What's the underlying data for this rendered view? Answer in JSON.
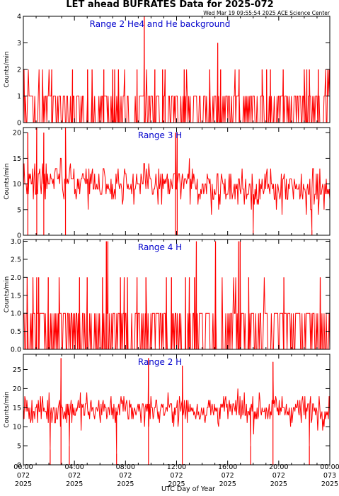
{
  "title": "LET ahead BUFRATES Data for 2025-072",
  "timestamp": "Wed Mar 19 09:55:54 2025 ACE Science Center",
  "xlabel": "UTC Day of Year",
  "ylabel": "Counts/min",
  "colors": {
    "trace": "#ff0000",
    "panel_label": "#0000cc",
    "axis": "#000000"
  },
  "x_ticks": [
    {
      "time": "00:00",
      "day": "072",
      "year": "2025"
    },
    {
      "time": "04:00",
      "day": "072",
      "year": "2025"
    },
    {
      "time": "08:00",
      "day": "072",
      "year": "2025"
    },
    {
      "time": "12:00",
      "day": "072",
      "year": "2025"
    },
    {
      "time": "16:00",
      "day": "072",
      "year": "2025"
    },
    {
      "time": "20:00",
      "day": "072",
      "year": "2025"
    },
    {
      "time": "00:00",
      "day": "073",
      "year": "2025"
    }
  ],
  "chart_data": [
    {
      "type": "line",
      "label": "Range 2 He4 and He background",
      "ylabel": "Counts/min",
      "xlim_hours": [
        0,
        24
      ],
      "ylim": [
        0,
        4
      ],
      "yticks": [
        "0",
        "1",
        "2",
        "3",
        "4"
      ],
      "typical_value": 0,
      "noise_pattern": "binary counts, mostly 0 and 1 with occasional 2",
      "spikes": [
        {
          "hour": 9.47,
          "value": 4
        },
        {
          "hour": 15.22,
          "value": 3
        },
        {
          "hour": 2.22,
          "value": 2
        },
        {
          "hour": 3.85,
          "value": 2
        },
        {
          "hour": 5.03,
          "value": 2
        },
        {
          "hour": 5.38,
          "value": 2
        },
        {
          "hour": 6.3,
          "value": 2
        },
        {
          "hour": 7.0,
          "value": 2
        },
        {
          "hour": 7.15,
          "value": 2
        },
        {
          "hour": 7.45,
          "value": 2
        },
        {
          "hour": 8.9,
          "value": 2
        },
        {
          "hour": 10.3,
          "value": 2
        },
        {
          "hour": 10.9,
          "value": 2
        },
        {
          "hour": 11.1,
          "value": 2
        },
        {
          "hour": 12.6,
          "value": 2
        },
        {
          "hour": 14.6,
          "value": 2
        },
        {
          "hour": 15.45,
          "value": 2
        },
        {
          "hour": 16.9,
          "value": 2
        },
        {
          "hour": 18.7,
          "value": 2
        },
        {
          "hour": 19.05,
          "value": 2
        },
        {
          "hour": 19.35,
          "value": 2
        },
        {
          "hour": 20.35,
          "value": 2
        },
        {
          "hour": 22.0,
          "value": 2
        },
        {
          "hour": 22.2,
          "value": 2
        },
        {
          "hour": 22.4,
          "value": 2
        },
        {
          "hour": 23.1,
          "value": 2
        }
      ]
    },
    {
      "type": "line",
      "label": "Range 3 H",
      "ylabel": "Counts/min",
      "xlim_hours": [
        0,
        24
      ],
      "ylim": [
        0,
        21
      ],
      "yticks": [
        "0",
        "5",
        "10",
        "15",
        "20"
      ],
      "typical_value": 10,
      "noise_pattern": "noisy counts ranging roughly 3 to 16, mean near 11 early in the day drifting to about 8",
      "spikes": [
        {
          "hour": 0.35,
          "value": 20
        },
        {
          "hour": 1.05,
          "value": 21
        },
        {
          "hour": 1.6,
          "value": 20
        },
        {
          "hour": 3.3,
          "value": 21
        },
        {
          "hour": 11.9,
          "value": 20
        },
        {
          "hour": 12.05,
          "value": 20
        },
        {
          "hour": 18.0,
          "value": 1
        },
        {
          "hour": 22.6,
          "value": 1
        }
      ]
    },
    {
      "type": "line",
      "label": "Range 4 H",
      "ylabel": "Counts/min",
      "xlim_hours": [
        0,
        24
      ],
      "ylim": [
        0,
        3.05
      ],
      "yticks": [
        "0.0",
        "0.5",
        "1.0",
        "1.5",
        "2.0",
        "2.5",
        "3.0"
      ],
      "typical_value": 0,
      "noise_pattern": "binary counts, mostly 0 and 1 with occasional 2",
      "spikes": [
        {
          "hour": 6.5,
          "value": 3
        },
        {
          "hour": 6.62,
          "value": 3
        },
        {
          "hour": 13.55,
          "value": 3
        },
        {
          "hour": 15.05,
          "value": 3
        },
        {
          "hour": 16.85,
          "value": 3
        },
        {
          "hour": 16.98,
          "value": 3
        },
        {
          "hour": 0.3,
          "value": 2
        },
        {
          "hour": 0.75,
          "value": 2
        },
        {
          "hour": 1.05,
          "value": 2
        },
        {
          "hour": 1.2,
          "value": 2
        },
        {
          "hour": 1.95,
          "value": 2
        },
        {
          "hour": 2.8,
          "value": 2
        },
        {
          "hour": 4.4,
          "value": 2
        },
        {
          "hour": 5.0,
          "value": 2
        },
        {
          "hour": 6.2,
          "value": 2
        },
        {
          "hour": 7.6,
          "value": 2
        },
        {
          "hour": 7.9,
          "value": 2
        },
        {
          "hour": 8.15,
          "value": 2
        },
        {
          "hour": 8.9,
          "value": 2
        },
        {
          "hour": 9.6,
          "value": 2
        },
        {
          "hour": 11.2,
          "value": 2
        },
        {
          "hour": 11.6,
          "value": 2
        },
        {
          "hour": 12.7,
          "value": 2
        },
        {
          "hour": 13.0,
          "value": 2
        },
        {
          "hour": 13.4,
          "value": 2
        },
        {
          "hour": 17.65,
          "value": 2
        },
        {
          "hour": 20.4,
          "value": 2
        },
        {
          "hour": 23.25,
          "value": 2
        }
      ]
    },
    {
      "type": "line",
      "label": "Range 2 H",
      "ylabel": "Counts/min",
      "xlim_hours": [
        0,
        24
      ],
      "ylim": [
        0,
        29
      ],
      "yticks": [
        "0",
        "5",
        "10",
        "15",
        "20",
        "25"
      ],
      "typical_value": 15,
      "noise_pattern": "noisy counts ranging roughly 7 to 23, mean near 14",
      "spikes": [
        {
          "hour": 2.95,
          "value": 28
        },
        {
          "hour": 9.8,
          "value": 28
        },
        {
          "hour": 12.45,
          "value": 26
        },
        {
          "hour": 19.55,
          "value": 27
        },
        {
          "hour": 2.1,
          "value": 4
        },
        {
          "hour": 3.6,
          "value": 5
        },
        {
          "hour": 7.3,
          "value": 3
        },
        {
          "hour": 17.8,
          "value": 5
        },
        {
          "hour": 22.4,
          "value": 5
        }
      ]
    }
  ]
}
